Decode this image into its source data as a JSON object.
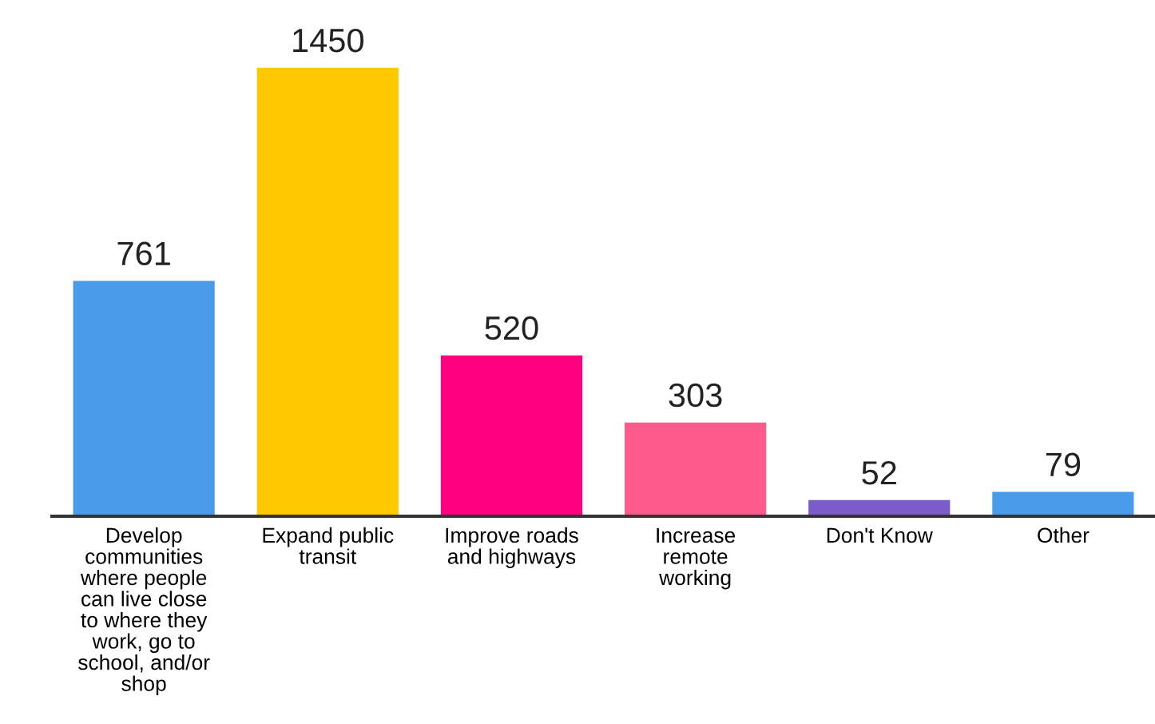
{
  "chart_data": {
    "type": "bar",
    "categories": [
      "Develop\ncommunities\nwhere people\ncan live close\nto where they\nwork, go to\nschool, and/or\nshop",
      "Expand public\ntransit",
      "Improve roads\nand highways",
      "Increase\nremote\nworking",
      "Don't Know",
      "Other"
    ],
    "values": [
      761,
      1450,
      520,
      303,
      52,
      79
    ],
    "colors": [
      "#4a9bea",
      "#ffc800",
      "#ff0080",
      "#ff5a8c",
      "#7b5cc8",
      "#4a9bea"
    ],
    "data_labels": true,
    "grid": false,
    "legend": false
  }
}
